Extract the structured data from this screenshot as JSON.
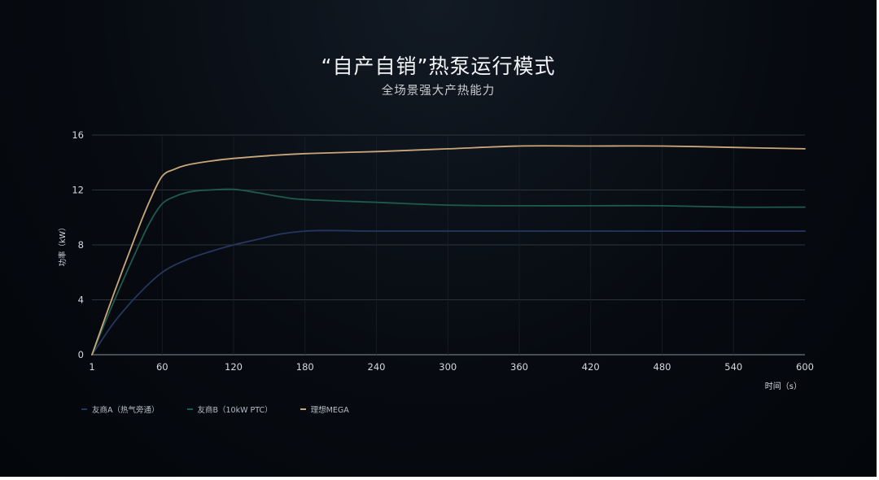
{
  "header": {
    "title": "“自产自销”热泵运行模式",
    "subtitle": "全场景强大产热能力"
  },
  "chart_data": {
    "type": "line",
    "title": "“自产自销”热泵运行模式",
    "subtitle": "全场景强大产热能力",
    "xlabel": "时间（s）",
    "ylabel": "功率（kW）",
    "xlim": [
      1,
      600
    ],
    "ylim": [
      0,
      16
    ],
    "x_ticks": [
      1,
      60,
      120,
      180,
      240,
      300,
      360,
      420,
      480,
      540,
      600
    ],
    "y_ticks": [
      0,
      4,
      8,
      12,
      16
    ],
    "grid": "horizontal",
    "legend_position": "bottom-left",
    "series": [
      {
        "name": "友商A（热气旁通）",
        "color": "#26375f",
        "x": [
          1,
          20,
          40,
          60,
          80,
          100,
          120,
          140,
          160,
          180,
          200,
          240,
          300,
          360,
          420,
          480,
          540,
          600
        ],
        "y": [
          0,
          2.4,
          4.4,
          6.0,
          6.9,
          7.5,
          8.0,
          8.4,
          8.8,
          9.0,
          9.05,
          9.0,
          9.0,
          9.0,
          9.0,
          9.0,
          9.0,
          9.0
        ]
      },
      {
        "name": "友商B（10kW PTC）",
        "color": "#1f5a4e",
        "x": [
          1,
          20,
          40,
          50,
          60,
          70,
          80,
          90,
          100,
          120,
          140,
          160,
          180,
          240,
          300,
          360,
          420,
          480,
          540,
          600
        ],
        "y": [
          0,
          4.0,
          7.9,
          9.7,
          11.0,
          11.5,
          11.8,
          11.95,
          12.0,
          12.05,
          11.8,
          11.5,
          11.3,
          11.1,
          10.9,
          10.85,
          10.85,
          10.85,
          10.75,
          10.75
        ]
      },
      {
        "name": "理想MEGA",
        "color": "#c9a77a",
        "x": [
          1,
          20,
          40,
          50,
          60,
          70,
          80,
          100,
          120,
          150,
          180,
          240,
          300,
          360,
          420,
          480,
          540,
          600
        ],
        "y": [
          0,
          4.6,
          9.2,
          11.3,
          13.0,
          13.5,
          13.8,
          14.1,
          14.3,
          14.5,
          14.65,
          14.8,
          15.0,
          15.2,
          15.2,
          15.2,
          15.1,
          15.0
        ]
      }
    ]
  }
}
